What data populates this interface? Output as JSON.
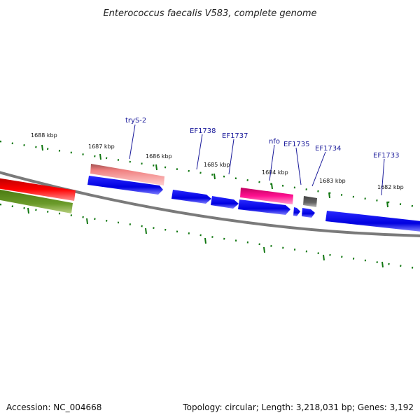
{
  "title": "Enterococcus faecalis V583, complete genome",
  "accession": "Accession: NC_004668",
  "summary": "Topology: circular; Length: 3,218,031 bp; Genes: 3,192",
  "kbp_labels": [
    "1688 kbp",
    "1687 kbp",
    "1686 kbp",
    "1685 kbp",
    "1684 kbp",
    "1683 kbp",
    "1682 kbp"
  ],
  "gene_labels": [
    "trуS-2",
    "EF1738",
    "EF1737",
    "nfo",
    "EF1735",
    "EF1734",
    "EF1733"
  ],
  "colors": {
    "backbone": "#808080",
    "forward_cds": "#0000ee",
    "highlight_red": "#ee0000",
    "highlight_green": "#5a8a1a",
    "rna_salmon": "#f08080",
    "rna_magenta": "#e0107a",
    "pseudo_gray": "#666666",
    "tick_green": "#117711",
    "label_blue": "#1a1a9a"
  }
}
